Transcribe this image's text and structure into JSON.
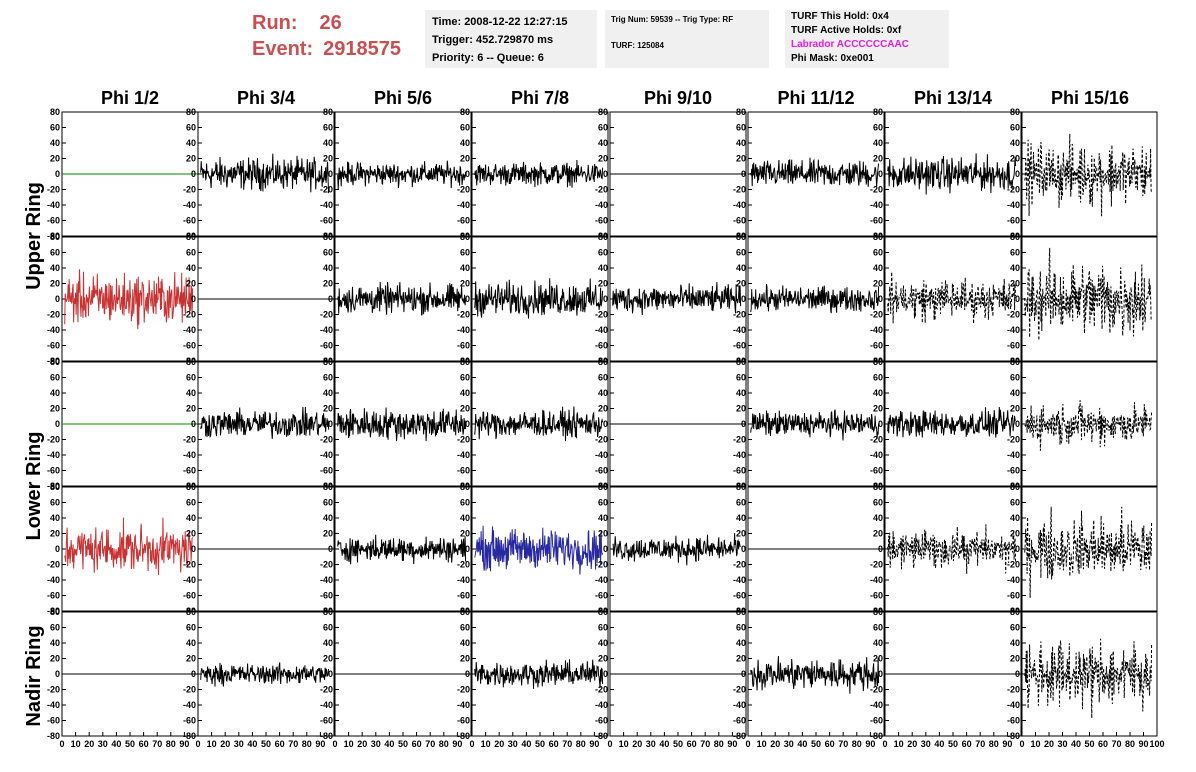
{
  "header": {
    "run_label": "Run:",
    "run_value": "26",
    "event_label": "Event:",
    "event_value": "2918575",
    "time_text": "Time: 2008-12-22 12:27:15",
    "trigger_text": "Trigger: 452.729870 ms",
    "priority_text": "Priority: 6 -- Queue: 6",
    "trig_num_text": "Trig Num: 59539 -- Trig Type: RF",
    "turf_text": "TURF: 125084",
    "turf_hold_text": "TURF This Hold: 0x4",
    "turf_active_text": "TURF Active Holds: 0xf",
    "labrador_text": "Labrador ACCCCCCAAC",
    "phi_mask_text": "Phi Mask: 0xe001",
    "labrador_color": "#e020e0",
    "run_color": "#c85050"
  },
  "chart_data": {
    "type": "line",
    "columns": [
      "Phi 1/2",
      "Phi 3/4",
      "Phi 5/6",
      "Phi 7/8",
      "Phi 9/10",
      "Phi 11/12",
      "Phi 13/14",
      "Phi 15/16"
    ],
    "rings": [
      "Upper Ring",
      "Lower Ring",
      "Nadir Ring"
    ],
    "xlim": [
      0,
      100
    ],
    "ylim": [
      -80,
      80
    ],
    "y_ticks": [
      80,
      60,
      40,
      20,
      0,
      -20,
      -40,
      -60,
      -80
    ],
    "x_ticks": [
      0,
      10,
      20,
      30,
      40,
      50,
      60,
      70,
      80,
      90,
      100
    ],
    "colors": {
      "normal": "#000000",
      "dead": "#008800",
      "red": "#c83232",
      "blue": "#2828a0"
    },
    "panels": [
      [
        {
          "style": "dead",
          "amp": 0
        },
        {
          "style": "solid",
          "amp": 14
        },
        {
          "style": "solid",
          "amp": 10
        },
        {
          "style": "solid",
          "amp": 10
        },
        {
          "style": "flat",
          "amp": 0
        },
        {
          "style": "solid",
          "amp": 12
        },
        {
          "style": "solid",
          "amp": 15
        },
        {
          "style": "dashed",
          "amp": 22
        }
      ],
      [
        {
          "style": "red",
          "amp": 22
        },
        {
          "style": "flat",
          "amp": 0
        },
        {
          "style": "solid",
          "amp": 13
        },
        {
          "style": "solid",
          "amp": 15
        },
        {
          "style": "solid",
          "amp": 12
        },
        {
          "style": "solid",
          "amp": 11
        },
        {
          "style": "dashed",
          "amp": 15
        },
        {
          "style": "dashed",
          "amp": 28
        }
      ],
      [
        {
          "style": "dead",
          "amp": 0
        },
        {
          "style": "solid",
          "amp": 12
        },
        {
          "style": "solid",
          "amp": 14
        },
        {
          "style": "solid",
          "amp": 12
        },
        {
          "style": "flat",
          "amp": 0
        },
        {
          "style": "solid",
          "amp": 11
        },
        {
          "style": "solid",
          "amp": 12
        },
        {
          "style": "dashed",
          "amp": 15
        }
      ],
      [
        {
          "style": "red",
          "amp": 20
        },
        {
          "style": "flat",
          "amp": 0
        },
        {
          "style": "solid",
          "amp": 11
        },
        {
          "style": "blue",
          "amp": 18
        },
        {
          "style": "solid",
          "amp": 11
        },
        {
          "style": "flat",
          "amp": 0
        },
        {
          "style": "dashed",
          "amp": 14
        },
        {
          "style": "dashed",
          "amp": 24
        }
      ],
      [
        {
          "style": "flat",
          "amp": 0
        },
        {
          "style": "solid",
          "amp": 9
        },
        {
          "style": "flat",
          "amp": 0
        },
        {
          "style": "solid",
          "amp": 11
        },
        {
          "style": "flat",
          "amp": 0
        },
        {
          "style": "solid",
          "amp": 14
        },
        {
          "style": "flat",
          "amp": 0
        },
        {
          "style": "dashed",
          "amp": 24
        }
      ]
    ]
  }
}
